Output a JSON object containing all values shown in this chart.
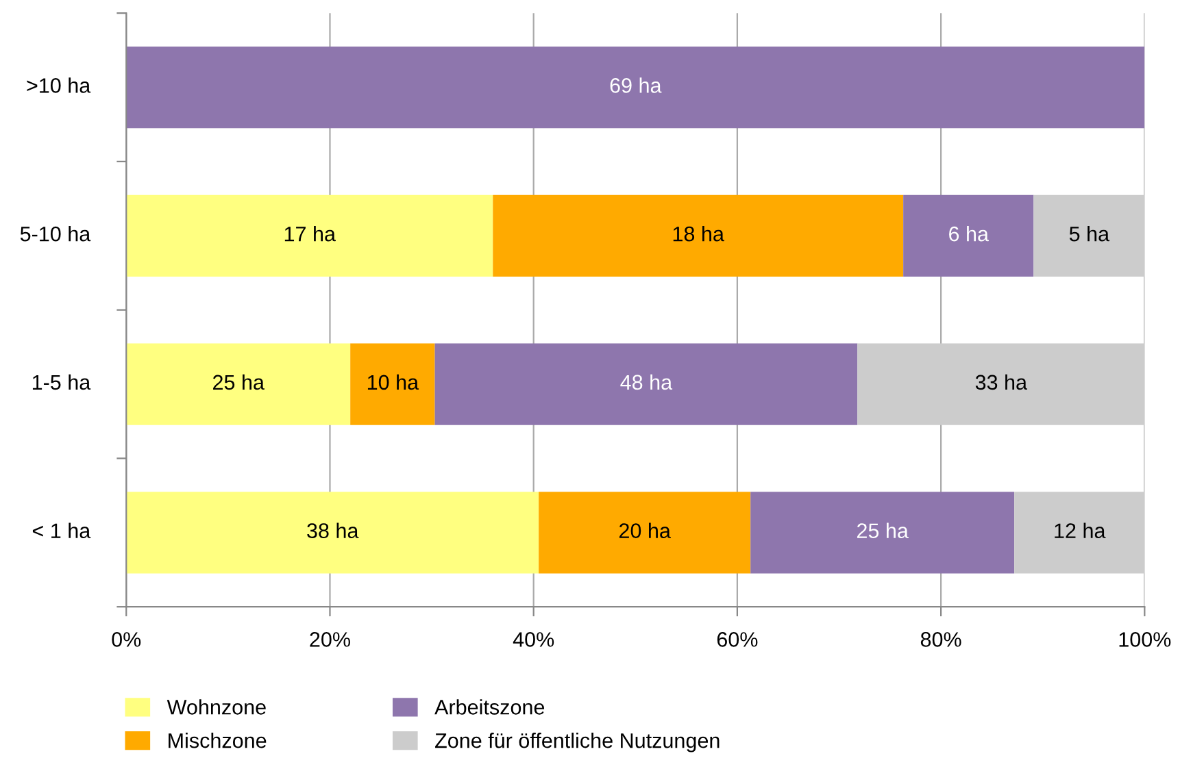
{
  "chart_data": {
    "type": "bar",
    "orientation": "horizontal",
    "stacked": true,
    "categories": [
      ">10 ha",
      "5-10 ha",
      "1-5 ha",
      "< 1 ha"
    ],
    "series": [
      {
        "name": "Wohnzone",
        "color": "#ffff80",
        "values": [
          null,
          36,
          22,
          40.5
        ]
      },
      {
        "name": "Mischzone",
        "color": "#ffaa00",
        "values": [
          null,
          40.3,
          8.3,
          20.8
        ]
      },
      {
        "name": "Arbeitszone",
        "color": "#8e76ad",
        "values": [
          100,
          12.8,
          41.5,
          25.9
        ]
      },
      {
        "name": "Zone für öffentliche Nutzungen",
        "color": "#cccccc",
        "values": [
          null,
          10.9,
          28.2,
          12.8
        ]
      }
    ],
    "annotations": [
      "69 ha",
      "17 ha",
      "18 ha",
      "6 ha",
      "5 ha",
      "25 ha",
      "10 ha",
      "48 ha",
      "33 ha",
      "38 ha",
      "20 ha",
      "25 ha",
      "12 ha"
    ],
    "xlim": [
      0,
      100
    ],
    "xticks": [
      {
        "value": 0,
        "label": "0%"
      },
      {
        "value": 20,
        "label": "20%"
      },
      {
        "value": 40,
        "label": "40%"
      },
      {
        "value": 60,
        "label": "60%"
      },
      {
        "value": 80,
        "label": "80%"
      },
      {
        "value": 100,
        "label": "100%"
      }
    ],
    "grid": "x",
    "legend": "bottom"
  }
}
